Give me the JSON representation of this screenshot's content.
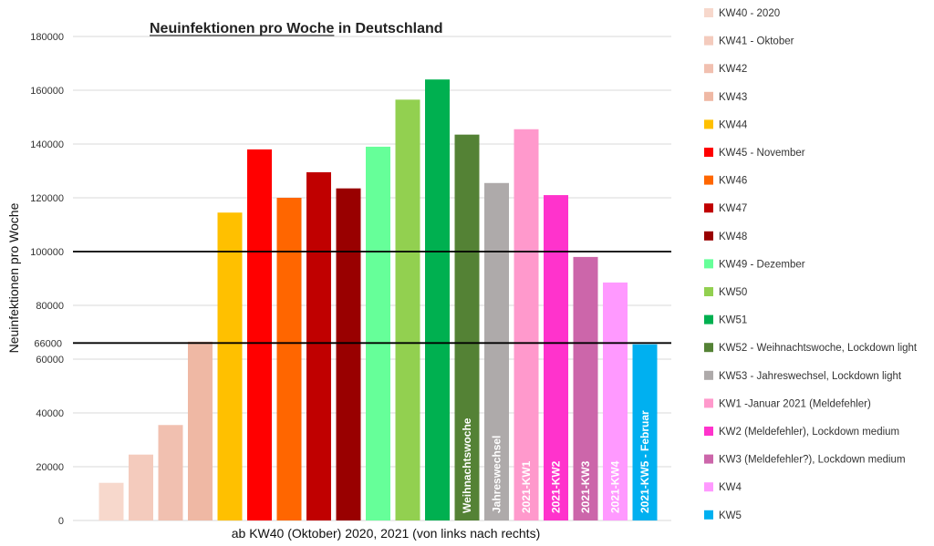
{
  "chart_data": {
    "type": "bar",
    "title": "Neuinfektionen pro Woche in Deutschland",
    "title_underlined_part": "Neuinfektionen pro Woche",
    "xlabel": "ab KW40 (Oktober) 2020, 2021 (von links nach rechts)",
    "ylabel": "Neuinfektionen pro Woche",
    "ylim": [
      0,
      180000
    ],
    "yticks": [
      0,
      20000,
      40000,
      60000,
      80000,
      100000,
      120000,
      140000,
      160000,
      180000
    ],
    "ytick_labels": [
      "0",
      "20000",
      "40000",
      "60000",
      "80000",
      "100000",
      "120000",
      "140000",
      "160000",
      "180000"
    ],
    "grid": true,
    "legend_position": "right",
    "reference_lines": [
      {
        "value": 100000,
        "label": ""
      },
      {
        "value": 66000,
        "label": "66000"
      }
    ],
    "categories": [
      "KW40 - 2020",
      "KW41 - Oktober",
      "KW42",
      "KW43",
      "KW44",
      "KW45 - November",
      "KW46",
      "KW47",
      "KW48",
      "KW49 - Dezember",
      "KW50",
      "KW51",
      "KW52 - Weihnachtswoche, Lockdown light",
      "KW53 - Jahreswechsel, Lockdown light",
      "KW1  -Januar 2021 (Meldefehler)",
      "KW2 (Meldefehler), Lockdown medium",
      "KW3 (Meldefehler?), Lockdown medium",
      "KW4",
      "KW5"
    ],
    "values": [
      14000,
      24500,
      35500,
      66500,
      114500,
      138000,
      120000,
      129500,
      123500,
      139000,
      156500,
      164000,
      143500,
      125500,
      145500,
      121000,
      98000,
      88500,
      65500
    ],
    "colors": [
      "#f7d8cc",
      "#f4cbbd",
      "#f1c0b0",
      "#efb8a4",
      "#ffc000",
      "#ff0000",
      "#ff6600",
      "#c00000",
      "#990000",
      "#66ff99",
      "#92d050",
      "#00b050",
      "#548235",
      "#aeaaaa",
      "#ff99cc",
      "#ff33cc",
      "#cc66aa",
      "#ff99ff",
      "#00b0f0"
    ],
    "bar_labels": [
      "",
      "",
      "",
      "",
      "",
      "",
      "",
      "",
      "",
      "",
      "",
      "",
      "Weihnachtswoche",
      "Jahreswechsel",
      "2021-KW1",
      "2021-KW2",
      "2021-KW3",
      "2021-KW4",
      "2021-KW5 - Februar"
    ]
  }
}
